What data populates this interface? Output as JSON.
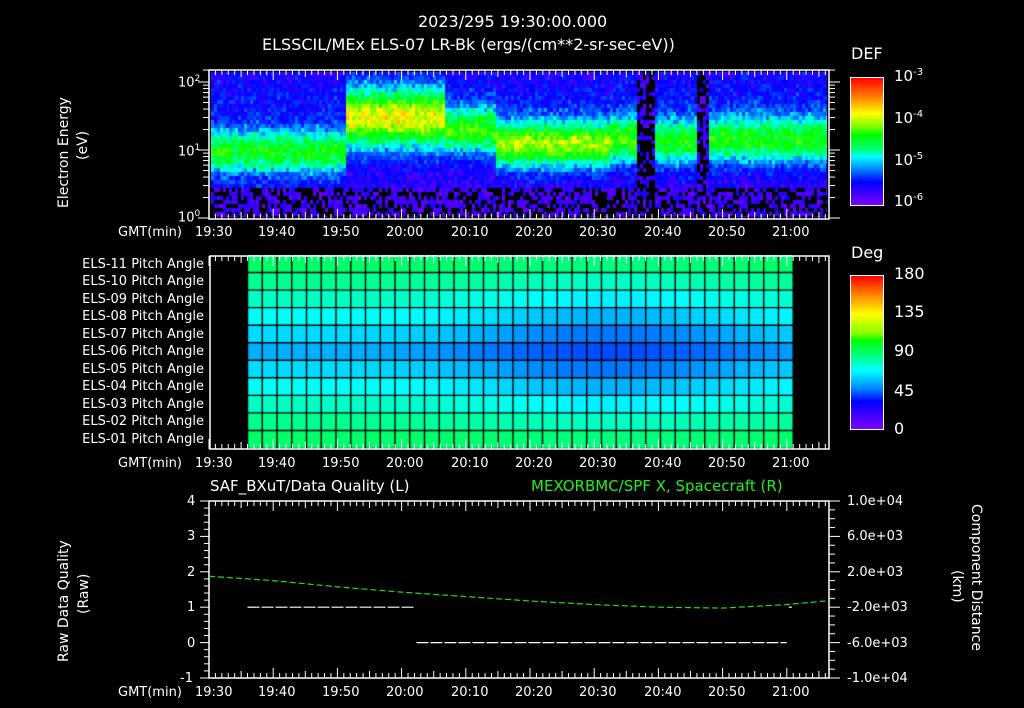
{
  "header": {
    "timestamp": "2023/295 19:30:00.000",
    "title": "ELSSCIL/MEx ELS-07 LR-Bk  (ergs/(cm**2-sr-sec-eV))"
  },
  "time_axis": {
    "label": "GMT(min)",
    "ticks": [
      "19:30",
      "19:40",
      "19:50",
      "20:00",
      "20:10",
      "20:20",
      "20:30",
      "20:40",
      "20:50",
      "21:00"
    ]
  },
  "panel1": {
    "ylabel": "Electron Energy",
    "yunit": "(eV)",
    "yticks": [
      {
        "base": "10",
        "exp": "0"
      },
      {
        "base": "10",
        "exp": "1"
      },
      {
        "base": "10",
        "exp": "2"
      }
    ],
    "colorbar": {
      "title": "DEF",
      "ticks": [
        {
          "base": "10",
          "exp": "-3"
        },
        {
          "base": "10",
          "exp": "-4"
        },
        {
          "base": "10",
          "exp": "-5"
        },
        {
          "base": "10",
          "exp": "-6"
        }
      ]
    }
  },
  "panel2": {
    "rows": [
      "ELS-11 Pitch Angle",
      "ELS-10 Pitch Angle",
      "ELS-09 Pitch Angle",
      "ELS-08 Pitch Angle",
      "ELS-07 Pitch Angle",
      "ELS-06 Pitch Angle",
      "ELS-05 Pitch Angle",
      "ELS-04 Pitch Angle",
      "ELS-03 Pitch Angle",
      "ELS-02 Pitch Angle",
      "ELS-01 Pitch Angle"
    ],
    "colorbar": {
      "title": "Deg",
      "ticks": [
        "180",
        "135",
        "90",
        "45",
        "0"
      ]
    }
  },
  "panel3": {
    "left_title": "SAF_BXuT/Data Quality (L)",
    "right_title": "MEXORBMC/SPF X, Spacecraft (R)",
    "ylabel_left": "Raw Data Quality",
    "yunit_left": "(Raw)",
    "yticks_left": [
      "4",
      "3",
      "2",
      "1",
      "0",
      "-1"
    ],
    "ylabel_right": "Component Distance",
    "yunit_right": "(km)",
    "yticks_right": [
      "1.0e+04",
      "6.0e+03",
      "2.0e+03",
      "-2.0e+03",
      "-6.0e+03",
      "-1.0e+04"
    ],
    "colors": {
      "left_series": "#ffffff",
      "right_series": "#22dd22",
      "right_title": "#22ee22"
    }
  },
  "chart_data": [
    {
      "type": "heatmap",
      "title": "ELSSCIL/MEx ELS-07 LR-Bk (ergs/(cm**2-sr-sec-eV))",
      "subtitle": "2023/295 19:30:00.000",
      "xlabel": "GMT(min)",
      "ylabel": "Electron Energy (eV)",
      "yscale": "log",
      "ylim": [
        1,
        150
      ],
      "xlim": [
        "19:30",
        "21:06"
      ],
      "colorbar": {
        "label": "DEF",
        "scale": "log",
        "range": [
          1e-06,
          0.001
        ]
      },
      "features": [
        {
          "time": "19:30-19:50",
          "peak_energy_eV": 10,
          "level": "~3e-5"
        },
        {
          "time": "19:50-20:05",
          "peak_energy_eV": 30,
          "level": "~1e-4"
        },
        {
          "time": "20:15-20:35",
          "peak_energy_eV": 13,
          "level": "~1e-4"
        },
        {
          "time": "20:36-20:38",
          "note": "data gap / low flux"
        },
        {
          "time": "20:44-20:46",
          "note": "data gap / low flux"
        },
        {
          "time": "20:46-21:06",
          "peak_energy_eV": 15,
          "level": "~2e-5"
        }
      ]
    },
    {
      "type": "heatmap",
      "title": "ELS Pitch Angle",
      "xlabel": "GMT(min)",
      "categories": [
        "ELS-11",
        "ELS-10",
        "ELS-09",
        "ELS-08",
        "ELS-07",
        "ELS-06",
        "ELS-05",
        "ELS-04",
        "ELS-03",
        "ELS-02",
        "ELS-01"
      ],
      "colorbar": {
        "label": "Deg",
        "range": [
          0,
          180
        ]
      },
      "data_time_range": [
        "19:36",
        "21:01"
      ],
      "values_note": "Edge anodes ~100 deg, center anodes ~60-70 deg, minimum ~55 deg near 20:35 for ELS-07/ELS-06"
    },
    {
      "type": "line",
      "xlabel": "GMT(min)",
      "x_range": [
        "19:30",
        "21:06"
      ],
      "series": [
        {
          "name": "SAF_BXuT/Data Quality (L)",
          "axis": "left",
          "ylim": [
            -1,
            4
          ],
          "points": [
            [
              "19:36",
              1
            ],
            [
              "20:02",
              1
            ],
            [
              "20:02",
              0
            ],
            [
              "21:00",
              0
            ],
            [
              "21:00",
              1
            ]
          ]
        },
        {
          "name": "MEXORBMC/SPF X, Spacecraft (R)",
          "axis": "right",
          "ylim": [
            -10000,
            10000
          ],
          "points": [
            [
              "19:30",
              1500
            ],
            [
              "19:40",
              1000
            ],
            [
              "19:50",
              300
            ],
            [
              "20:00",
              -300
            ],
            [
              "20:10",
              -800
            ],
            [
              "20:20",
              -1300
            ],
            [
              "20:30",
              -1700
            ],
            [
              "20:40",
              -2000
            ],
            [
              "20:50",
              -2100
            ],
            [
              "21:00",
              -1700
            ],
            [
              "21:06",
              -1300
            ]
          ]
        }
      ]
    }
  ]
}
